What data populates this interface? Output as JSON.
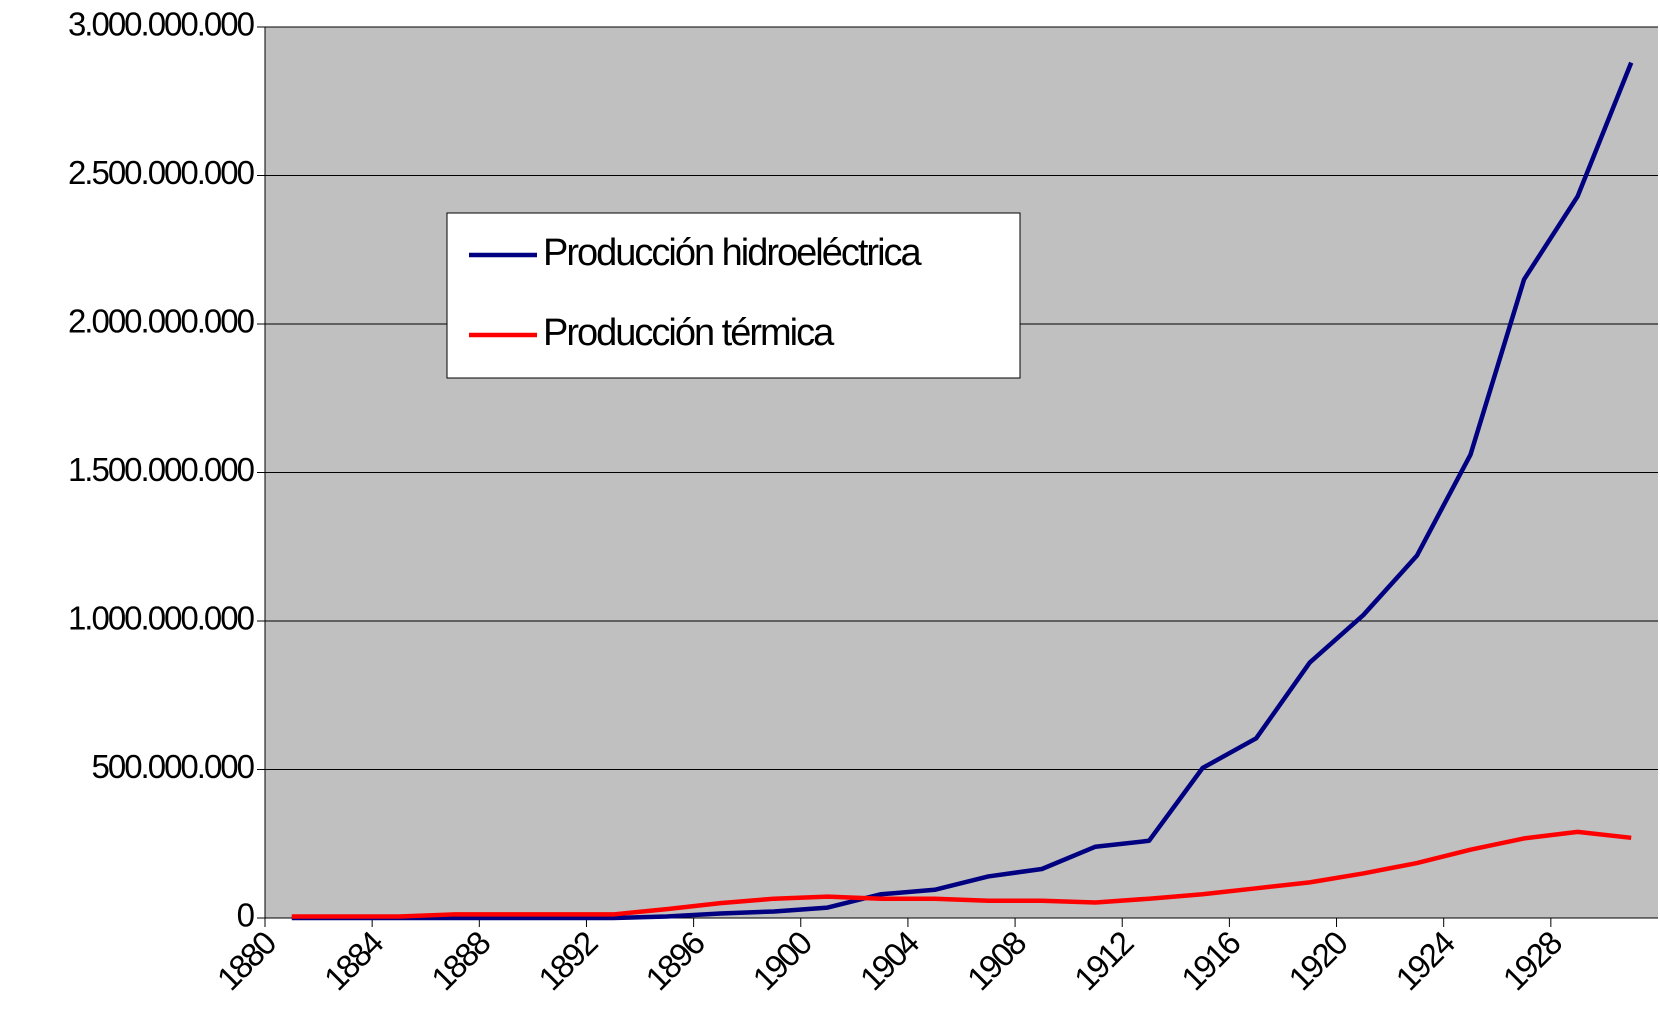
{
  "chart_data": {
    "type": "line",
    "x": [
      1881,
      1883,
      1885,
      1887,
      1889,
      1891,
      1893,
      1895,
      1897,
      1899,
      1901,
      1903,
      1905,
      1907,
      1909,
      1911,
      1913,
      1915,
      1917,
      1919,
      1921,
      1923,
      1925,
      1927,
      1929,
      1931
    ],
    "series": [
      {
        "name": "Producción hidroeléctrica",
        "color": "#000080",
        "values": [
          0,
          0,
          0,
          0,
          0,
          0,
          0,
          5000000,
          15000000,
          22000000,
          35000000,
          80000000,
          95000000,
          140000000,
          165000000,
          240000000,
          260000000,
          505000000,
          605000000,
          860000000,
          1020000000,
          1220000000,
          1560000000,
          2150000000,
          2430000000,
          2880000000
        ]
      },
      {
        "name": "Producción térmica",
        "color": "#ff0000",
        "values": [
          5000000,
          5000000,
          5000000,
          12000000,
          12000000,
          12000000,
          12000000,
          30000000,
          50000000,
          65000000,
          72000000,
          65000000,
          65000000,
          58000000,
          58000000,
          52000000,
          65000000,
          80000000,
          100000000,
          120000000,
          150000000,
          185000000,
          230000000,
          268000000,
          290000000,
          270000000
        ]
      }
    ],
    "xlim": [
      1880,
      1932
    ],
    "xticks": [
      1880,
      1884,
      1888,
      1892,
      1896,
      1900,
      1904,
      1908,
      1912,
      1916,
      1920,
      1924,
      1928
    ],
    "ylim": [
      0,
      3000000000
    ],
    "yticks": [
      0,
      {
        "value": 500000000,
        "label": "500.000.000"
      },
      {
        "value": 1000000000,
        "label": "1.000.000.000"
      },
      {
        "value": 1500000000,
        "label": "1.500.000.000"
      },
      {
        "value": 2000000000,
        "label": "2.000.000.000"
      },
      {
        "value": 2500000000,
        "label": "2.500.000.000"
      },
      {
        "value": 3000000000,
        "label": "3.000.000.000"
      }
    ],
    "grid": true,
    "plot_background": "#c0c0c0"
  }
}
